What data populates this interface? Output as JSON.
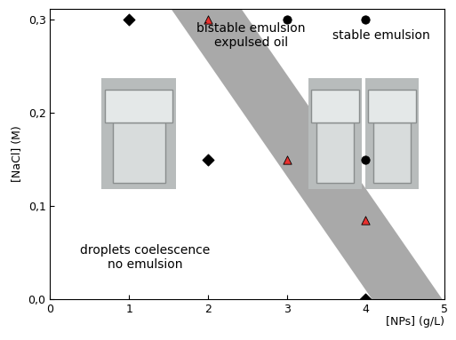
{
  "chart_data": {
    "type": "scatter",
    "x_label": "[NPs] (g/L)",
    "y_label": "[NaCl] (M)",
    "annotations": [
      "bistable emulsion\nexpulsed oil",
      "stable emulsion",
      "droplets coelescence\nno emulsion"
    ],
    "series": [
      {
        "color": "#000000",
        "marker": "diamond",
        "x": [
          1,
          2,
          4
        ],
        "values": [
          0.3,
          0.15,
          0.0
        ]
      },
      {
        "color": "#e8312f",
        "marker": "triangle",
        "x": [
          2,
          3,
          4
        ],
        "values": [
          0.3,
          0.15,
          0.085
        ]
      },
      {
        "color": "#000000",
        "marker": "circle",
        "x": [
          3,
          4,
          4
        ],
        "values": [
          0.3,
          0.3,
          0.15
        ]
      }
    ],
    "band": {
      "y": [
        0.312,
        0.0
      ],
      "x_low": [
        1.53,
        4.08
      ],
      "x_high": [
        2.42,
        4.97
      ]
    },
    "xlim": [
      0,
      5
    ],
    "ylim": [
      0,
      0.312
    ],
    "xticks": [
      0,
      1,
      2,
      3,
      4,
      5
    ],
    "yticks": [
      {
        "value": 0.0,
        "label": "0,0"
      },
      {
        "value": 0.1,
        "label": "0,1"
      },
      {
        "value": 0.2,
        "label": "0,2"
      },
      {
        "value": 0.3,
        "label": "0,3"
      }
    ],
    "grid": false
  }
}
